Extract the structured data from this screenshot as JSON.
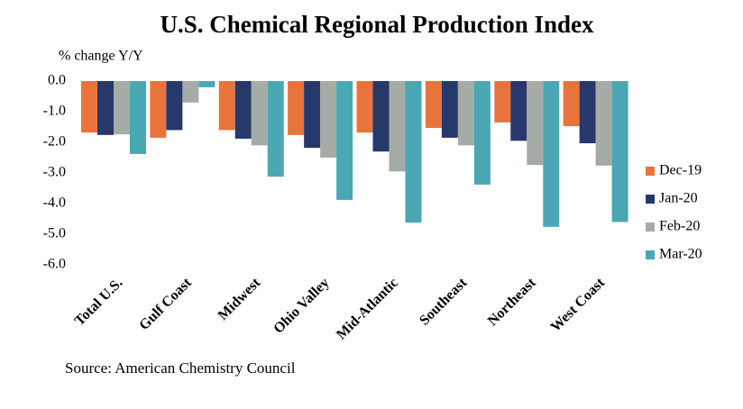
{
  "chart_data": {
    "type": "bar",
    "title": "U.S. Chemical Regional Production Index",
    "y_label": "% change Y/Y",
    "source": "Source: American Chemistry Council",
    "categories": [
      "Total U.S.",
      "Gulf Coast",
      "Midwest",
      "Ohio Valley",
      "Mid-Atlantic",
      "Southeast",
      "Northeast",
      "West Coast"
    ],
    "series": [
      {
        "name": "Dec-19",
        "color": "#e8743b",
        "values": [
          -1.68,
          -1.85,
          -1.6,
          -1.76,
          -1.68,
          -1.53,
          -1.35,
          -1.47
        ]
      },
      {
        "name": "Jan-20",
        "color": "#27386b",
        "values": [
          -1.76,
          -1.6,
          -1.88,
          -2.18,
          -2.3,
          -1.85,
          -1.95,
          -2.03
        ]
      },
      {
        "name": "Feb-20",
        "color": "#a4aca5",
        "values": [
          -1.74,
          -0.7,
          -2.1,
          -2.5,
          -2.95,
          -2.1,
          -2.74,
          -2.76
        ]
      },
      {
        "name": "Mar-20",
        "color": "#4aa8b4",
        "values": [
          -2.38,
          -0.2,
          -3.12,
          -3.88,
          -4.62,
          -3.38,
          -4.76,
          -4.6
        ]
      }
    ],
    "ylim": [
      -6,
      0
    ],
    "yticks": [
      {
        "value": 0,
        "label": "0.0"
      },
      {
        "value": -1,
        "label": "-1.0"
      },
      {
        "value": -2,
        "label": "-2.0"
      },
      {
        "value": -3,
        "label": "-3.0"
      },
      {
        "value": -4,
        "label": "-4.0"
      },
      {
        "value": -5,
        "label": "-5.0"
      },
      {
        "value": -6,
        "label": "-6.0"
      }
    ],
    "legend": "right"
  }
}
